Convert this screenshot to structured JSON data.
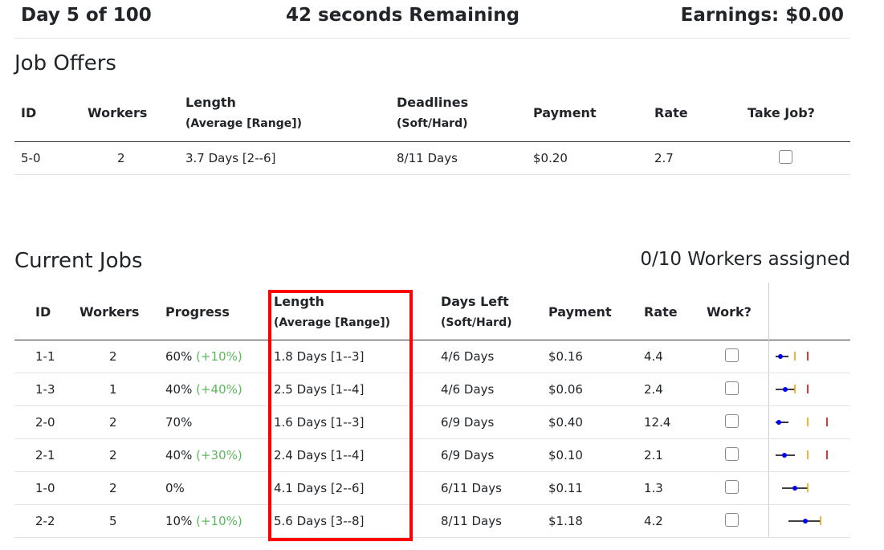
{
  "header": {
    "day": "Day 5 of 100",
    "timer": "42 seconds Remaining",
    "earnings": "Earnings: $0.00"
  },
  "job_offers": {
    "title": "Job Offers",
    "columns": {
      "id": "ID",
      "workers": "Workers",
      "length": "Length",
      "length_sub": "(Average [Range])",
      "deadlines": "Deadlines",
      "deadlines_sub": "(Soft/Hard)",
      "payment": "Payment",
      "rate": "Rate",
      "take": "Take Job?"
    },
    "rows": [
      {
        "id": "5-0",
        "workers": "2",
        "length": "3.7 Days [2--6]",
        "deadlines": "8/11 Days",
        "payment": "$0.20",
        "rate": "2.7",
        "checked": false
      }
    ]
  },
  "current_jobs": {
    "title": "Current Jobs",
    "workers_assigned": "0/10 Workers assigned",
    "columns": {
      "id": "ID",
      "workers": "Workers",
      "progress": "Progress",
      "length": "Length",
      "length_sub": "(Average [Range])",
      "days_left": "Days Left",
      "days_left_sub": "(Soft/Hard)",
      "payment": "Payment",
      "rate": "Rate",
      "work": "Work?"
    },
    "rows": [
      {
        "id": "1-1",
        "workers": "2",
        "progress": "60%",
        "progress_inc": "(+10%)",
        "length": "1.8 Days [1--3]",
        "days_left": "4/6 Days",
        "payment": "$0.16",
        "rate": "4.4",
        "checked": false
      },
      {
        "id": "1-3",
        "workers": "1",
        "progress": "40%",
        "progress_inc": "(+40%)",
        "length": "2.5 Days [1--4]",
        "days_left": "4/6 Days",
        "payment": "$0.06",
        "rate": "2.4",
        "checked": false
      },
      {
        "id": "2-0",
        "workers": "2",
        "progress": "70%",
        "progress_inc": "",
        "length": "1.6 Days [1--3]",
        "days_left": "6/9 Days",
        "payment": "$0.40",
        "rate": "12.4",
        "checked": false
      },
      {
        "id": "2-1",
        "workers": "2",
        "progress": "40%",
        "progress_inc": "(+30%)",
        "length": "2.4 Days [1--4]",
        "days_left": "6/9 Days",
        "payment": "$0.10",
        "rate": "2.1",
        "checked": false
      },
      {
        "id": "1-0",
        "workers": "2",
        "progress": "0%",
        "progress_inc": "",
        "length": "4.1 Days [2--6]",
        "days_left": "6/11 Days",
        "payment": "$0.11",
        "rate": "1.3",
        "checked": false
      },
      {
        "id": "2-2",
        "workers": "5",
        "progress": "10%",
        "progress_inc": "(+10%)",
        "length": "5.6 Days [3--8]",
        "days_left": "8/11 Days",
        "payment": "$1.18",
        "rate": "4.2",
        "checked": false
      }
    ]
  },
  "colors": {
    "increase_text": "#5cb85c",
    "highlight_box": "#ff0000",
    "timeline_dot": "#0000ff",
    "soft_deadline": "#f0a000",
    "hard_deadline": "#dd0000"
  }
}
